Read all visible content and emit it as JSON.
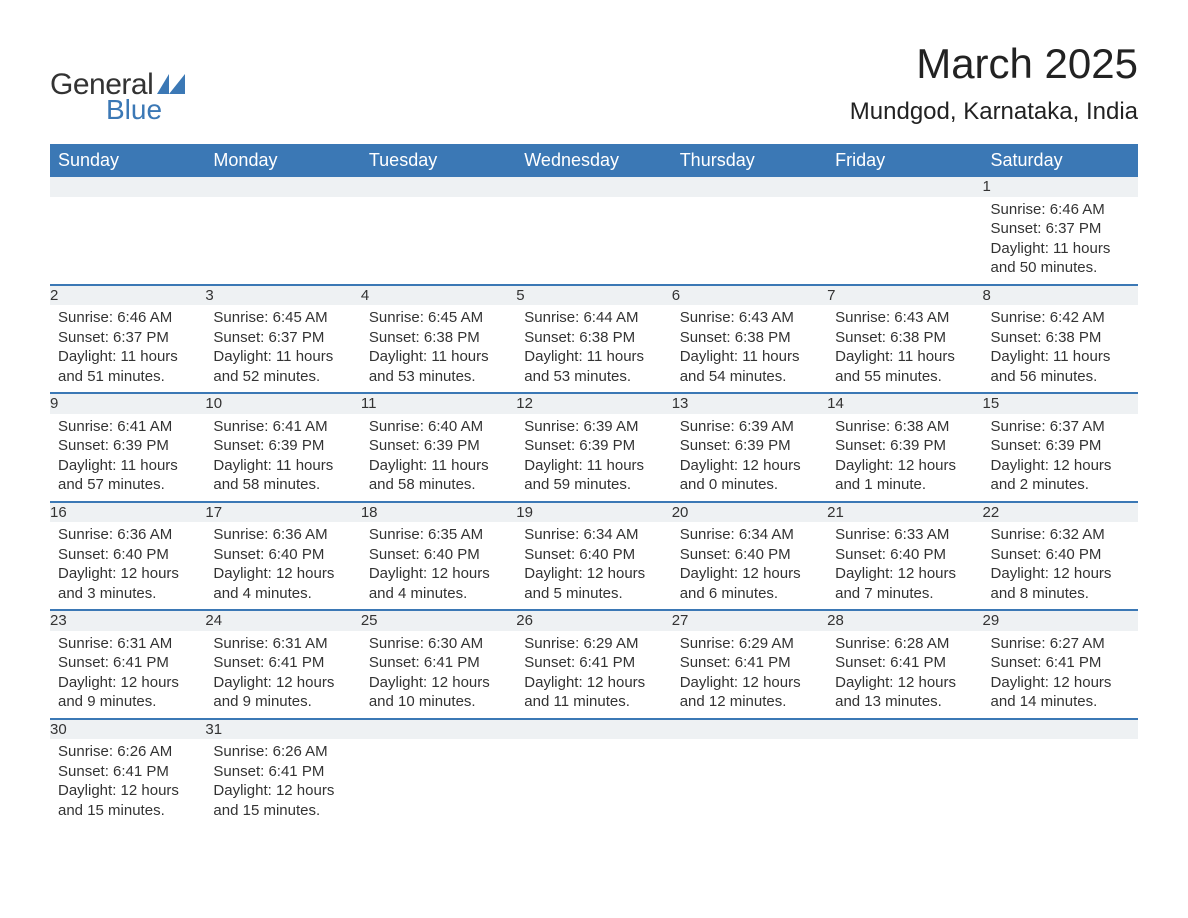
{
  "brand": {
    "word1": "General",
    "word2": "Blue",
    "tri_color": "#3b78b5"
  },
  "title": "March 2025",
  "location": "Mundgod, Karnataka, India",
  "header_bg": "#3b78b5",
  "header_fg": "#ffffff",
  "daynum_bg": "#eef1f3",
  "row_border": "#3b78b5",
  "text_color": "#333333",
  "days_of_week": [
    "Sunday",
    "Monday",
    "Tuesday",
    "Wednesday",
    "Thursday",
    "Friday",
    "Saturday"
  ],
  "weeks": [
    {
      "cells": [
        null,
        null,
        null,
        null,
        null,
        null,
        {
          "n": "1",
          "sunrise": "Sunrise: 6:46 AM",
          "sunset": "Sunset: 6:37 PM",
          "daylight": "Daylight: 11 hours and 50 minutes."
        }
      ]
    },
    {
      "cells": [
        {
          "n": "2",
          "sunrise": "Sunrise: 6:46 AM",
          "sunset": "Sunset: 6:37 PM",
          "daylight": "Daylight: 11 hours and 51 minutes."
        },
        {
          "n": "3",
          "sunrise": "Sunrise: 6:45 AM",
          "sunset": "Sunset: 6:37 PM",
          "daylight": "Daylight: 11 hours and 52 minutes."
        },
        {
          "n": "4",
          "sunrise": "Sunrise: 6:45 AM",
          "sunset": "Sunset: 6:38 PM",
          "daylight": "Daylight: 11 hours and 53 minutes."
        },
        {
          "n": "5",
          "sunrise": "Sunrise: 6:44 AM",
          "sunset": "Sunset: 6:38 PM",
          "daylight": "Daylight: 11 hours and 53 minutes."
        },
        {
          "n": "6",
          "sunrise": "Sunrise: 6:43 AM",
          "sunset": "Sunset: 6:38 PM",
          "daylight": "Daylight: 11 hours and 54 minutes."
        },
        {
          "n": "7",
          "sunrise": "Sunrise: 6:43 AM",
          "sunset": "Sunset: 6:38 PM",
          "daylight": "Daylight: 11 hours and 55 minutes."
        },
        {
          "n": "8",
          "sunrise": "Sunrise: 6:42 AM",
          "sunset": "Sunset: 6:38 PM",
          "daylight": "Daylight: 11 hours and 56 minutes."
        }
      ]
    },
    {
      "cells": [
        {
          "n": "9",
          "sunrise": "Sunrise: 6:41 AM",
          "sunset": "Sunset: 6:39 PM",
          "daylight": "Daylight: 11 hours and 57 minutes."
        },
        {
          "n": "10",
          "sunrise": "Sunrise: 6:41 AM",
          "sunset": "Sunset: 6:39 PM",
          "daylight": "Daylight: 11 hours and 58 minutes."
        },
        {
          "n": "11",
          "sunrise": "Sunrise: 6:40 AM",
          "sunset": "Sunset: 6:39 PM",
          "daylight": "Daylight: 11 hours and 58 minutes."
        },
        {
          "n": "12",
          "sunrise": "Sunrise: 6:39 AM",
          "sunset": "Sunset: 6:39 PM",
          "daylight": "Daylight: 11 hours and 59 minutes."
        },
        {
          "n": "13",
          "sunrise": "Sunrise: 6:39 AM",
          "sunset": "Sunset: 6:39 PM",
          "daylight": "Daylight: 12 hours and 0 minutes."
        },
        {
          "n": "14",
          "sunrise": "Sunrise: 6:38 AM",
          "sunset": "Sunset: 6:39 PM",
          "daylight": "Daylight: 12 hours and 1 minute."
        },
        {
          "n": "15",
          "sunrise": "Sunrise: 6:37 AM",
          "sunset": "Sunset: 6:39 PM",
          "daylight": "Daylight: 12 hours and 2 minutes."
        }
      ]
    },
    {
      "cells": [
        {
          "n": "16",
          "sunrise": "Sunrise: 6:36 AM",
          "sunset": "Sunset: 6:40 PM",
          "daylight": "Daylight: 12 hours and 3 minutes."
        },
        {
          "n": "17",
          "sunrise": "Sunrise: 6:36 AM",
          "sunset": "Sunset: 6:40 PM",
          "daylight": "Daylight: 12 hours and 4 minutes."
        },
        {
          "n": "18",
          "sunrise": "Sunrise: 6:35 AM",
          "sunset": "Sunset: 6:40 PM",
          "daylight": "Daylight: 12 hours and 4 minutes."
        },
        {
          "n": "19",
          "sunrise": "Sunrise: 6:34 AM",
          "sunset": "Sunset: 6:40 PM",
          "daylight": "Daylight: 12 hours and 5 minutes."
        },
        {
          "n": "20",
          "sunrise": "Sunrise: 6:34 AM",
          "sunset": "Sunset: 6:40 PM",
          "daylight": "Daylight: 12 hours and 6 minutes."
        },
        {
          "n": "21",
          "sunrise": "Sunrise: 6:33 AM",
          "sunset": "Sunset: 6:40 PM",
          "daylight": "Daylight: 12 hours and 7 minutes."
        },
        {
          "n": "22",
          "sunrise": "Sunrise: 6:32 AM",
          "sunset": "Sunset: 6:40 PM",
          "daylight": "Daylight: 12 hours and 8 minutes."
        }
      ]
    },
    {
      "cells": [
        {
          "n": "23",
          "sunrise": "Sunrise: 6:31 AM",
          "sunset": "Sunset: 6:41 PM",
          "daylight": "Daylight: 12 hours and 9 minutes."
        },
        {
          "n": "24",
          "sunrise": "Sunrise: 6:31 AM",
          "sunset": "Sunset: 6:41 PM",
          "daylight": "Daylight: 12 hours and 9 minutes."
        },
        {
          "n": "25",
          "sunrise": "Sunrise: 6:30 AM",
          "sunset": "Sunset: 6:41 PM",
          "daylight": "Daylight: 12 hours and 10 minutes."
        },
        {
          "n": "26",
          "sunrise": "Sunrise: 6:29 AM",
          "sunset": "Sunset: 6:41 PM",
          "daylight": "Daylight: 12 hours and 11 minutes."
        },
        {
          "n": "27",
          "sunrise": "Sunrise: 6:29 AM",
          "sunset": "Sunset: 6:41 PM",
          "daylight": "Daylight: 12 hours and 12 minutes."
        },
        {
          "n": "28",
          "sunrise": "Sunrise: 6:28 AM",
          "sunset": "Sunset: 6:41 PM",
          "daylight": "Daylight: 12 hours and 13 minutes."
        },
        {
          "n": "29",
          "sunrise": "Sunrise: 6:27 AM",
          "sunset": "Sunset: 6:41 PM",
          "daylight": "Daylight: 12 hours and 14 minutes."
        }
      ]
    },
    {
      "cells": [
        {
          "n": "30",
          "sunrise": "Sunrise: 6:26 AM",
          "sunset": "Sunset: 6:41 PM",
          "daylight": "Daylight: 12 hours and 15 minutes."
        },
        {
          "n": "31",
          "sunrise": "Sunrise: 6:26 AM",
          "sunset": "Sunset: 6:41 PM",
          "daylight": "Daylight: 12 hours and 15 minutes."
        },
        null,
        null,
        null,
        null,
        null
      ]
    }
  ]
}
